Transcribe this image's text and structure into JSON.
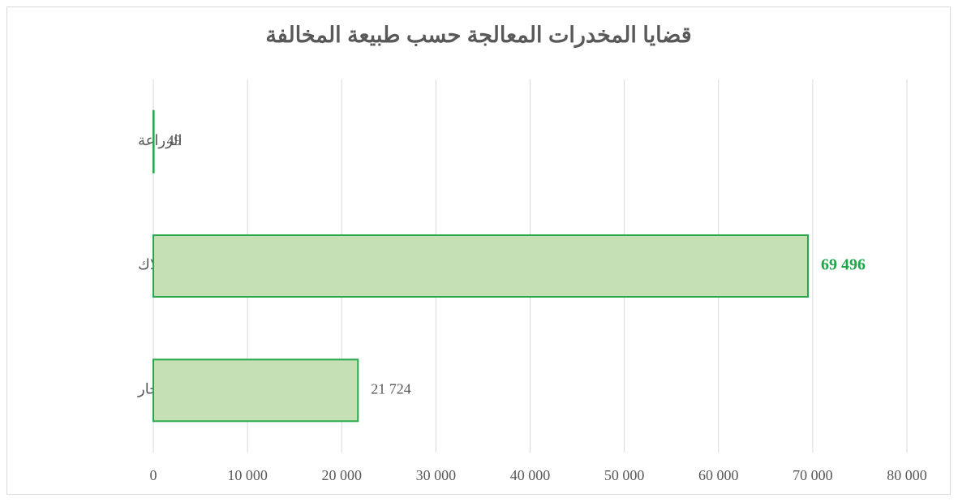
{
  "chart_data": {
    "type": "barh",
    "title": "قضايا المخدرات المعالجة حسب طبيعة المخالفة",
    "categories": [
      "الزراعة",
      "الحيازة والإستهلاك",
      "التهريب والإتجار"
    ],
    "values": [
      49,
      69496,
      21724
    ],
    "value_labels": [
      "49",
      "69 496",
      "21 724"
    ],
    "color": "#c5e0b4",
    "edge_color": "#27a84a",
    "xlim": [
      0,
      80000
    ],
    "xticks": [
      0,
      {
        "value": 10000,
        "label": "10 000"
      },
      {
        "value": 20000,
        "label": "20 000"
      },
      {
        "value": 30000,
        "label": "30 000"
      },
      {
        "value": 40000,
        "label": "40 000"
      },
      {
        "value": 50000,
        "label": "50 000"
      },
      {
        "value": 60000,
        "label": "60 000"
      },
      {
        "value": 70000,
        "label": "70 000"
      },
      {
        "value": 80000,
        "label": "80 000"
      }
    ],
    "grid": true
  }
}
